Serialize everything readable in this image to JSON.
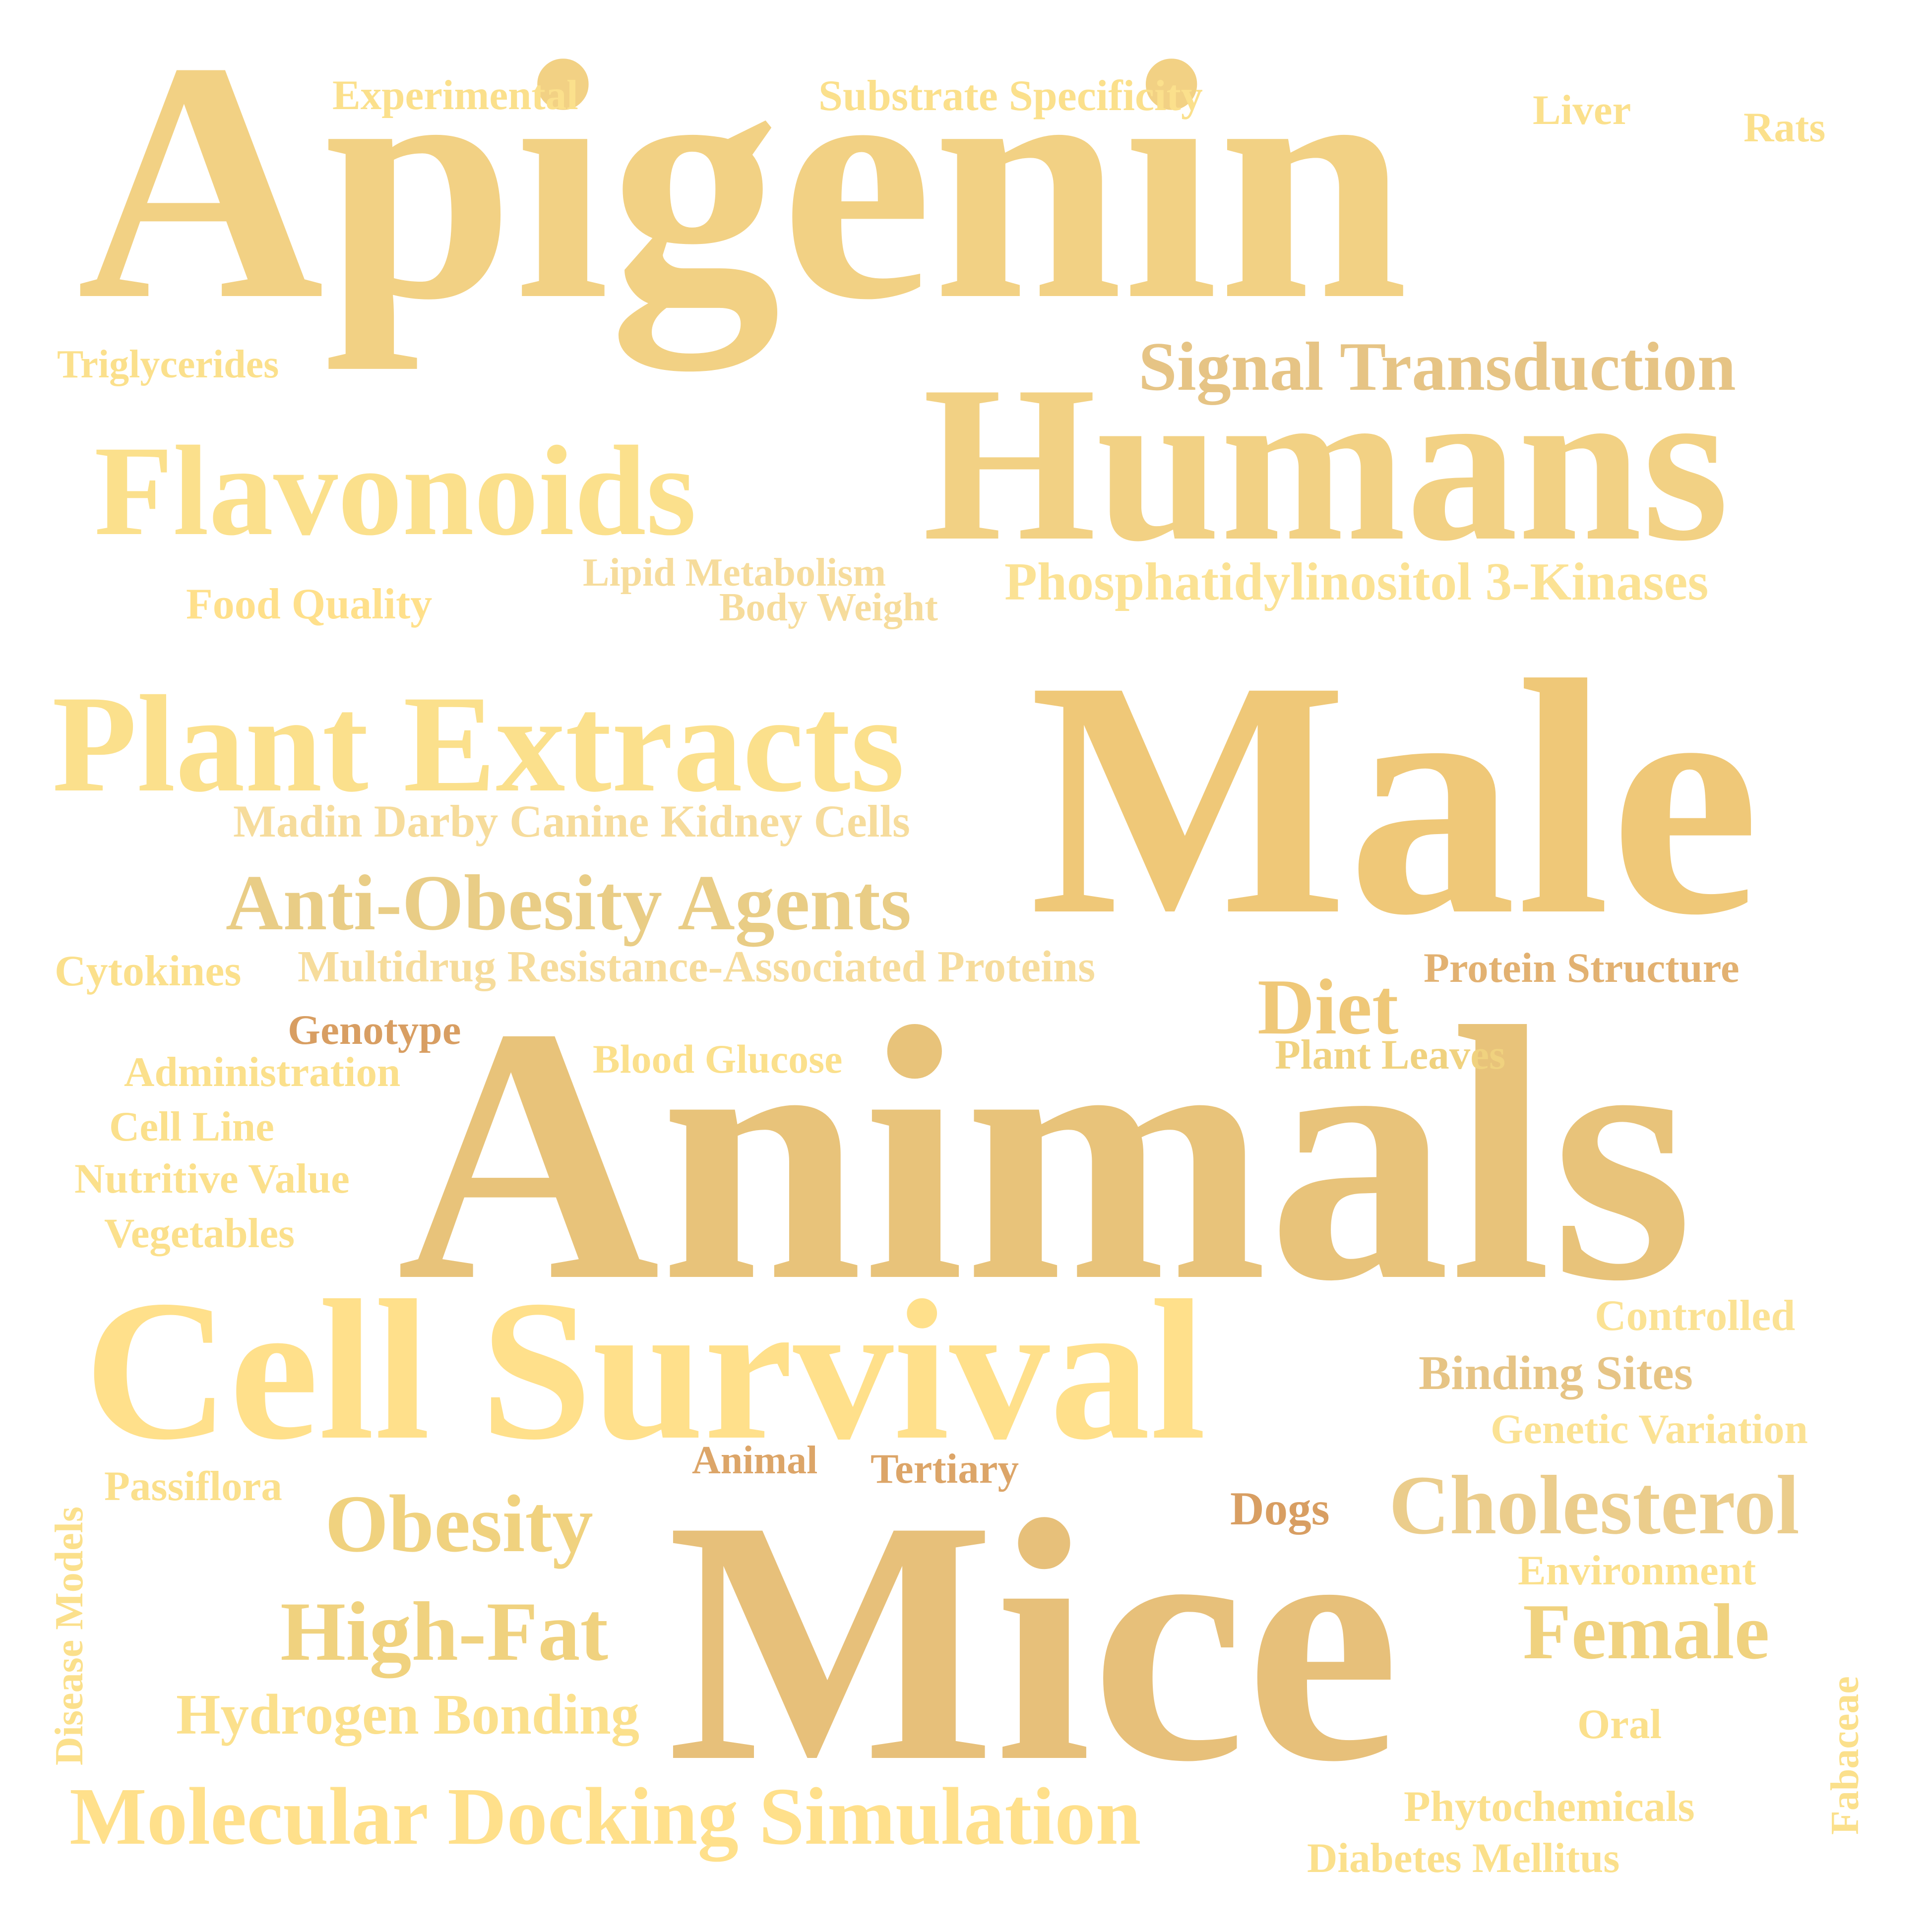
{
  "words": {
    "apigenin": "Apigenin",
    "humans": "Humans",
    "male": "Male",
    "animals": "Animals",
    "mice": "Mice",
    "cell_survival": "Cell Survival",
    "plant_extracts": "Plant Extracts",
    "flavonoids": "Flavonoids",
    "signal_transduction": "Signal Transduction",
    "anti_obesity_agents": "Anti-Obesity Agents",
    "molecular_docking_simulation": "Molecular Docking Simulation",
    "phosphatidylinositol": "Phosphatidylinositol 3-Kinases",
    "high_fat": "High-Fat",
    "obesity": "Obesity",
    "cholesterol": "Cholesterol",
    "female": "Female",
    "diet": "Diet",
    "hydrogen_bonding": "Hydrogen Bonding",
    "madin_darby": "Madin Darby Canine Kidney Cells",
    "multidrug": "Multidrug Resistance-Associated Proteins",
    "experimental": "Experimental",
    "substrate_specificity": "Substrate Specificity",
    "liver": "Liver",
    "rats": "Rats",
    "triglycerides": "Triglycerides",
    "food_quality": "Food Quality",
    "lipid_metabolism": "Lipid Metabolism",
    "body_weight": "Body Weight",
    "cytokines": "Cytokines",
    "protein_structure": "Protein Structure",
    "genotype": "Genotype",
    "administration": "Administration",
    "blood_glucose": "Blood Glucose",
    "plant_leaves": "Plant Leaves",
    "cell_line": "Cell Line",
    "nutritive_value": "Nutritive Value",
    "vegetables": "Vegetables",
    "controlled": "Controlled",
    "binding_sites": "Binding Sites",
    "genetic_variation": "Genetic Variation",
    "animal": "Animal",
    "tertiary": "Tertiary",
    "passiflora": "Passiflora",
    "dogs": "Dogs",
    "environment": "Environment",
    "disease_models": "Disease Models",
    "oral": "Oral",
    "fabaceae": "Fabaceae",
    "phytochemicals": "Phytochemicals",
    "diabetes_mellitus": "Diabetes Mellitus"
  },
  "palette": {
    "background": "#ffffff",
    "gold_light": "#ffe08b",
    "gold_mid": "#efc878",
    "gold_dark": "#d89e62"
  }
}
